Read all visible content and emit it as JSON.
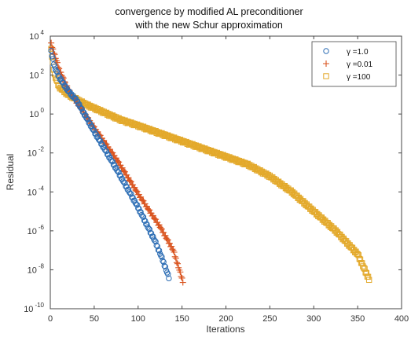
{
  "chart_data": {
    "type": "scatter",
    "title": [
      "convergence by modified AL preconditioner",
      "with the new Schur approximation"
    ],
    "xlabel": "Iterations",
    "ylabel": "Residual",
    "xlim": [
      0,
      400
    ],
    "ylim_log10": [
      -10,
      4
    ],
    "y_scale": "log",
    "grid": false,
    "legend_position": "top-right",
    "x_ticks": [
      {
        "value": 0,
        "label": "0"
      },
      {
        "value": 50,
        "label": "50"
      },
      {
        "value": 100,
        "label": "100"
      },
      {
        "value": 150,
        "label": "150"
      },
      {
        "value": 200,
        "label": "200"
      },
      {
        "value": 250,
        "label": "250"
      },
      {
        "value": 300,
        "label": "300"
      },
      {
        "value": 350,
        "label": "350"
      },
      {
        "value": 400,
        "label": "400"
      }
    ],
    "y_ticks": [
      {
        "exp": 4,
        "base": "10",
        "sup": "4"
      },
      {
        "exp": 2,
        "base": "10",
        "sup": "2"
      },
      {
        "exp": 0,
        "base": "10",
        "sup": "0"
      },
      {
        "exp": -2,
        "base": "10",
        "sup": "-2"
      },
      {
        "exp": -4,
        "base": "10",
        "sup": "-4"
      },
      {
        "exp": -6,
        "base": "10",
        "sup": "-6"
      },
      {
        "exp": -8,
        "base": "10",
        "sup": "-8"
      },
      {
        "exp": -10,
        "base": "10",
        "sup": "-10"
      }
    ],
    "series": [
      {
        "name": "γ =1.0",
        "marker": "circle",
        "color": "#2f6fb5",
        "log10_points": [
          [
            1,
            3.2
          ],
          [
            5,
            2.4
          ],
          [
            10,
            1.9
          ],
          [
            20,
            1.2
          ],
          [
            30,
            0.7
          ],
          [
            50,
            -0.9
          ],
          [
            75,
            -2.8
          ],
          [
            100,
            -4.8
          ],
          [
            120,
            -6.6
          ],
          [
            128,
            -7.5
          ],
          [
            135,
            -8.4
          ]
        ]
      },
      {
        "name": "γ =0.01",
        "marker": "plus",
        "color": "#d9531e",
        "log10_points": [
          [
            1,
            3.6
          ],
          [
            10,
            2.3
          ],
          [
            20,
            1.3
          ],
          [
            30,
            0.6
          ],
          [
            50,
            -0.7
          ],
          [
            75,
            -2.3
          ],
          [
            100,
            -4.1
          ],
          [
            125,
            -5.8
          ],
          [
            140,
            -7.0
          ],
          [
            151,
            -8.6
          ]
        ]
      },
      {
        "name": "γ =100",
        "marker": "square",
        "color": "#e3a92b",
        "log10_points": [
          [
            1,
            3.3
          ],
          [
            5,
            2.0
          ],
          [
            10,
            1.4
          ],
          [
            20,
            1.0
          ],
          [
            40,
            0.5
          ],
          [
            60,
            0.1
          ],
          [
            80,
            -0.3
          ],
          [
            100,
            -0.6
          ],
          [
            125,
            -1.0
          ],
          [
            150,
            -1.4
          ],
          [
            175,
            -1.8
          ],
          [
            200,
            -2.2
          ],
          [
            225,
            -2.6
          ],
          [
            250,
            -3.2
          ],
          [
            275,
            -4.0
          ],
          [
            300,
            -5.0
          ],
          [
            325,
            -6.0
          ],
          [
            350,
            -7.2
          ],
          [
            363,
            -8.5
          ]
        ]
      }
    ]
  }
}
